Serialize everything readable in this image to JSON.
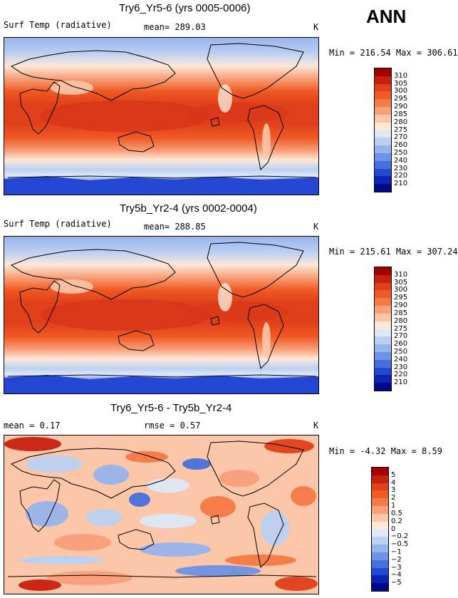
{
  "season": "ANN",
  "panels": [
    {
      "title": "Try6_Yr5-6 (yrs 0005-0006)",
      "left_label": "Surf Temp (radiative)",
      "mean_label": "mean= 289.03",
      "unit": "K",
      "minmax": "Min = 216.54 Max = 306.61",
      "colorbar": {
        "labels": [
          "310",
          "305",
          "300",
          "295",
          "290",
          "285",
          "280",
          "275",
          "270",
          "260",
          "250",
          "240",
          "230",
          "220",
          "210"
        ],
        "colors": [
          "#a00000",
          "#c8200e",
          "#e0401a",
          "#f05a24",
          "#f47a46",
          "#f8a07a",
          "#fcc6a8",
          "#fde8d8",
          "#dde8f8",
          "#bcd0f2",
          "#97b4ec",
          "#6e92e4",
          "#4870dc",
          "#2448d4",
          "#0c24b4",
          "#02088a"
        ]
      }
    },
    {
      "title": "Try5b_Yr2-4 (yrs 0002-0004)",
      "left_label": "Surf Temp (radiative)",
      "mean_label": "mean= 288.85",
      "unit": "K",
      "minmax": "Min = 215.61 Max = 307.24",
      "colorbar": {
        "labels": [
          "310",
          "305",
          "300",
          "295",
          "290",
          "285",
          "280",
          "275",
          "270",
          "260",
          "250",
          "240",
          "230",
          "220",
          "210"
        ],
        "colors": [
          "#a00000",
          "#c8200e",
          "#e0401a",
          "#f05a24",
          "#f47a46",
          "#f8a07a",
          "#fcc6a8",
          "#fde8d8",
          "#dde8f8",
          "#bcd0f2",
          "#97b4ec",
          "#6e92e4",
          "#4870dc",
          "#2448d4",
          "#0c24b4",
          "#02088a"
        ]
      }
    },
    {
      "title": "Try6_Yr5-6 - Try5b_Yr2-4",
      "left_label": "mean = 0.17",
      "mean_label": "rmse = 0.57",
      "unit": "K",
      "minmax": "Min = -4.32 Max = 8.59",
      "colorbar": {
        "labels": [
          "5",
          "4",
          "3",
          "2",
          "1",
          "0.5",
          "0.2",
          "0",
          "−0.2",
          "−0.5",
          "−1",
          "−2",
          "−3",
          "−4",
          "−5"
        ],
        "colors": [
          "#a00000",
          "#c8200e",
          "#e0401a",
          "#f05a24",
          "#f47a46",
          "#f8a07a",
          "#fcc6a8",
          "#fde8d8",
          "#dde8f8",
          "#bcd0f2",
          "#97b4ec",
          "#6e92e4",
          "#4870dc",
          "#2448d4",
          "#0c24b4",
          "#02088a"
        ]
      }
    }
  ]
}
